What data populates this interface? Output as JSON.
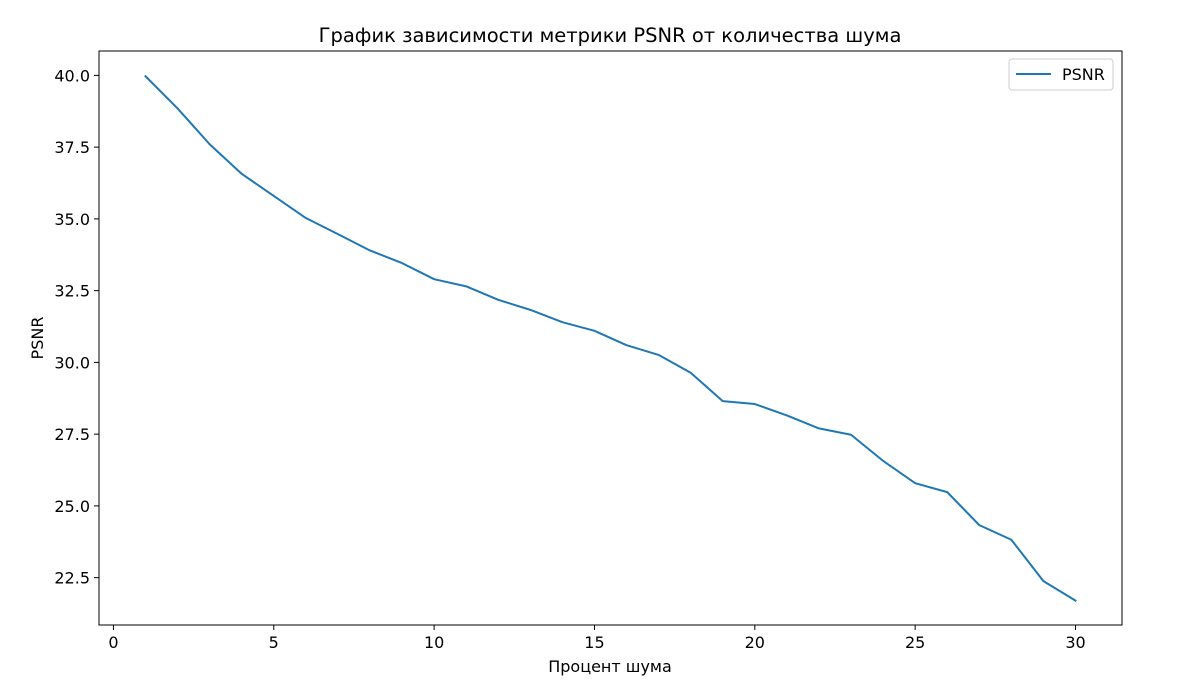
{
  "chart_data": {
    "type": "line",
    "title": "График зависимости метрики PSNR от количества шума",
    "xlabel": "Процент шума",
    "ylabel": "PSNR",
    "xlim": [
      -0.45,
      31.45
    ],
    "ylim": [
      20.85,
      40.85
    ],
    "xticks": [
      0,
      5,
      10,
      15,
      20,
      25,
      30
    ],
    "yticks": [
      22.5,
      25.0,
      27.5,
      30.0,
      32.5,
      35.0,
      37.5,
      40.0
    ],
    "ytick_labels": [
      "22.5",
      "25.0",
      "27.5",
      "30.0",
      "32.5",
      "35.0",
      "37.5",
      "40.0"
    ],
    "grid": false,
    "legend_position": "top-right",
    "series": [
      {
        "name": "PSNR",
        "color": "#1f77b4",
        "x": [
          1,
          2,
          3,
          4,
          5,
          6,
          7,
          8,
          9,
          10,
          11,
          12,
          13,
          14,
          15,
          16,
          17,
          18,
          19,
          20,
          21,
          22,
          23,
          24,
          25,
          26,
          27,
          28,
          29,
          30
        ],
        "values": [
          39.97,
          38.85,
          37.6,
          36.57,
          35.8,
          35.03,
          34.47,
          33.9,
          33.46,
          32.9,
          32.65,
          32.18,
          31.83,
          31.4,
          31.1,
          30.6,
          30.26,
          29.64,
          28.65,
          28.55,
          28.15,
          27.7,
          27.48,
          26.57,
          25.79,
          25.48,
          24.33,
          23.82,
          22.38,
          21.7
        ]
      }
    ]
  }
}
